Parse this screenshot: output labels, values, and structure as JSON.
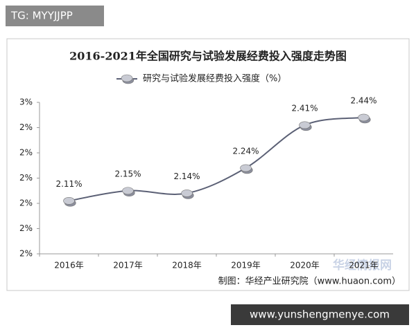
{
  "chart_data": {
    "type": "line",
    "title": "2016-2021年全国研究与试验发展经费投入强度走势图",
    "categories": [
      "2016年",
      "2017年",
      "2018年",
      "2019年",
      "2020年",
      "2021年"
    ],
    "series": [
      {
        "name": "研究与试验发展经费投入强度（%）",
        "color": "#5b6075",
        "values": [
          2.11,
          2.15,
          2.14,
          2.24,
          2.41,
          2.44
        ],
        "value_labels": [
          "2.11%",
          "2.15%",
          "2.14%",
          "2.24%",
          "2.41%",
          "2.44%"
        ]
      }
    ],
    "ylim": [
      1.9,
      2.5
    ],
    "yticks": [
      {
        "value": 1.9,
        "label": "2%"
      },
      {
        "value": 2.0,
        "label": "2%"
      },
      {
        "value": 2.1,
        "label": "2%"
      },
      {
        "value": 2.2,
        "label": "2%"
      },
      {
        "value": 2.3,
        "label": "2%"
      },
      {
        "value": 2.4,
        "label": "2%"
      },
      {
        "value": 2.5,
        "label": "3%"
      }
    ],
    "legend": "top",
    "smooth": true,
    "grid": false,
    "source": "制图：华经产业研究院（www.huaon.com）"
  },
  "watermarks": {
    "top_left": "TG: MYYJJPP",
    "brand": "华经情报网",
    "bottom_right": "www.yunshengmenye.com"
  }
}
